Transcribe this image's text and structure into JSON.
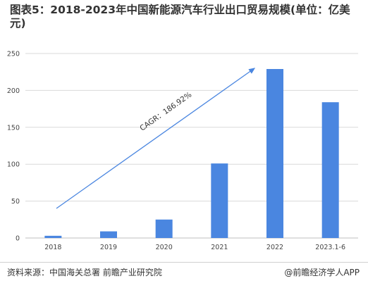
{
  "title": "图表5：2018-2023年中国新能源汽车行业出口贸易规模(单位：亿美元)",
  "footer": {
    "source": "资料来源：中国海关总署 前瞻产业研究院",
    "brand": "@前瞻经济学人APP"
  },
  "colors": {
    "bar": "#4a86e0",
    "arrow": "#4a86e0",
    "grid": "#d9d9d9"
  },
  "chart_data": {
    "type": "bar",
    "categories": [
      "2018",
      "2019",
      "2020",
      "2021",
      "2022",
      "2023.1-6"
    ],
    "values": [
      3,
      9,
      25,
      101,
      229,
      184
    ],
    "yticks": [
      0,
      50,
      100,
      150,
      200,
      250
    ],
    "ylim": [
      0,
      250
    ],
    "annotation": "CAGR：186.92%",
    "grid": true
  }
}
